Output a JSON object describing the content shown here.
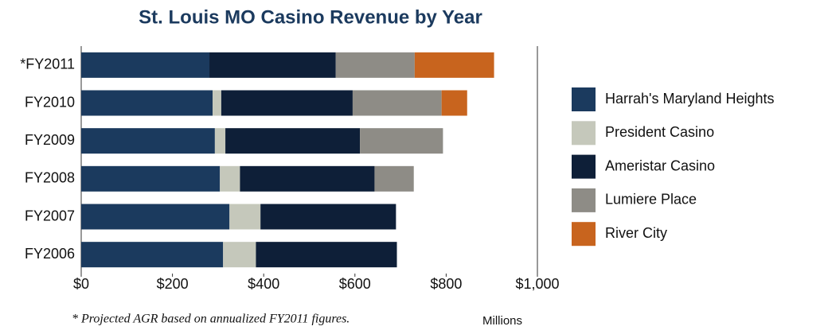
{
  "chart_data": {
    "type": "stacked-barh",
    "title": "St. Louis MO Casino Revenue by Year",
    "categories": [
      "*FY2011",
      "FY2010",
      "FY2009",
      "FY2008",
      "FY2007",
      "FY2006"
    ],
    "series": [
      {
        "name": "Harrah's Maryland Heights",
        "color": "#1b3a5e",
        "values": [
          281,
          288,
          293,
          304,
          325,
          311
        ]
      },
      {
        "name": "President Casino",
        "color": "#c5c8bb",
        "values": [
          0,
          19,
          23,
          44,
          68,
          72
        ]
      },
      {
        "name": "Ameristar Casino",
        "color": "#0e1f38",
        "values": [
          277,
          288,
          295,
          295,
          297,
          309
        ]
      },
      {
        "name": "Lumiere Place",
        "color": "#8e8c86",
        "values": [
          173,
          195,
          182,
          86,
          0,
          0
        ]
      },
      {
        "name": "River City",
        "color": "#c8641e",
        "values": [
          174,
          56,
          0,
          0,
          0,
          0
        ]
      }
    ],
    "xlim": [
      0,
      1000
    ],
    "xticks": [
      {
        "value": 0,
        "label": "$0"
      },
      {
        "value": 200,
        "label": "$200"
      },
      {
        "value": 400,
        "label": "$400"
      },
      {
        "value": 600,
        "label": "$600"
      },
      {
        "value": 800,
        "label": "$800"
      },
      {
        "value": 1000,
        "label": "$1,000"
      }
    ],
    "annotations": [
      "* Projected AGR based on annualized FY2011 figures.",
      "Millions"
    ],
    "legend": "right"
  }
}
